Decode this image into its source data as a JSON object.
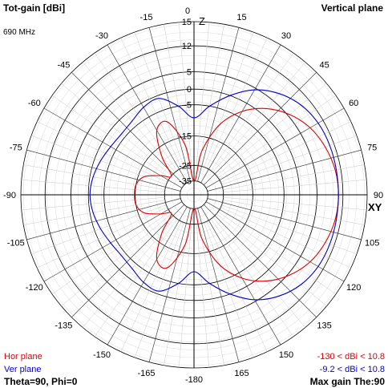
{
  "header": {
    "title": "Tot-gain [dBi]",
    "frequency": "690 MHz",
    "plane": "Vertical plane"
  },
  "footer": {
    "hor_label": "Hor plane",
    "ver_label": "Ver plane",
    "angles": "Theta=90, Phi=0",
    "hor_range": "-130 < dBi < 10.8",
    "ver_range": "-9.2 < dBi < 10.8",
    "max_gain": "Max gain The:90"
  },
  "colors": {
    "hor": "#dd0000",
    "ver": "#0000cc",
    "grid": "#b0b0b0",
    "axis": "#000000"
  },
  "chart_data": {
    "type": "polar",
    "axis_labels": {
      "top": "Z",
      "right": "XY"
    },
    "radial_ticks": [
      15,
      12,
      5,
      0,
      -5,
      -15,
      -25,
      -35
    ],
    "radial_range_dbi": [
      -35,
      15
    ],
    "angle_ticks": [
      {
        "angle": 0,
        "label": "0"
      },
      {
        "angle": 15,
        "label": "15"
      },
      {
        "angle": 30,
        "label": "30"
      },
      {
        "angle": 45,
        "label": "45"
      },
      {
        "angle": 60,
        "label": "60"
      },
      {
        "angle": 75,
        "label": "75"
      },
      {
        "angle": 90,
        "label": "90"
      },
      {
        "angle": 105,
        "label": "105"
      },
      {
        "angle": 120,
        "label": "120"
      },
      {
        "angle": 135,
        "label": "135"
      },
      {
        "angle": 150,
        "label": "150"
      },
      {
        "angle": 165,
        "label": "165"
      },
      {
        "angle": 180,
        "label": "-180"
      },
      {
        "angle": -165,
        "label": "-165"
      },
      {
        "angle": -150,
        "label": "-150"
      },
      {
        "angle": -135,
        "label": "-135"
      },
      {
        "angle": -120,
        "label": "-120"
      },
      {
        "angle": -105,
        "label": "-105"
      },
      {
        "angle": -90,
        "label": "-90"
      },
      {
        "angle": -75,
        "label": "-75"
      },
      {
        "angle": -60,
        "label": "-60"
      },
      {
        "angle": -45,
        "label": "-45"
      },
      {
        "angle": -30,
        "label": "-30"
      },
      {
        "angle": -15,
        "label": "-15"
      }
    ],
    "series": [
      {
        "name": "Hor plane",
        "angle_deg": [
          0,
          10,
          20,
          30,
          40,
          50,
          60,
          70,
          80,
          90,
          100,
          110,
          120,
          130,
          140,
          150,
          160,
          170,
          180,
          -170,
          -160,
          -150,
          -140,
          -130,
          -120,
          -110,
          -100,
          -90,
          -80,
          -70,
          -60,
          -50,
          -40,
          -30,
          -20,
          -10
        ],
        "gain_dbi": [
          -35,
          -20,
          -10,
          -3,
          2,
          5.5,
          8,
          9.5,
          10.5,
          10.8,
          10.5,
          9.5,
          8,
          5.5,
          2,
          -3,
          -10,
          -20,
          -35,
          -18,
          -9,
          -10,
          -18,
          -25,
          -22,
          -17,
          -15,
          -14.8,
          -15,
          -17,
          -22,
          -25,
          -18,
          -10,
          -9,
          -18
        ]
      },
      {
        "name": "Ver plane",
        "angle_deg": [
          0,
          10,
          20,
          30,
          40,
          50,
          60,
          70,
          80,
          90,
          100,
          110,
          120,
          130,
          140,
          150,
          160,
          170,
          180,
          -170,
          -160,
          -150,
          -140,
          -130,
          -120,
          -110,
          -100,
          -90,
          -80,
          -70,
          -60,
          -50,
          -40,
          -30,
          -20,
          -10
        ],
        "gain_dbi": [
          -9.2,
          -5,
          0,
          4.5,
          7.5,
          9.5,
          10.5,
          10.8,
          10.8,
          10.8,
          10.8,
          10.8,
          10.5,
          9.5,
          7.5,
          4.5,
          0,
          -5,
          -9.2,
          -5,
          -1,
          -1.5,
          -3,
          -3.5,
          -3,
          -2,
          -1,
          -0.5,
          -1,
          -2,
          -3,
          -3.5,
          -3,
          -1.5,
          -1,
          -5
        ]
      }
    ]
  }
}
